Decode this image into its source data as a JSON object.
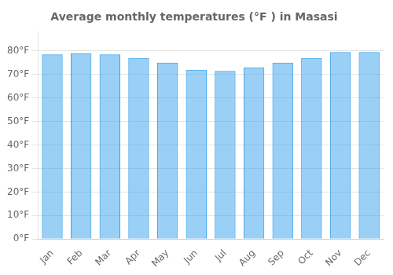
{
  "chart_data": {
    "type": "bar",
    "title": "Average monthly temperatures (°F ) in Masasi",
    "categories": [
      "Jan",
      "Feb",
      "Mar",
      "Apr",
      "May",
      "Jun",
      "Jul",
      "Aug",
      "Sep",
      "Oct",
      "Nov",
      "Dec"
    ],
    "values": [
      78.5,
      79.0,
      78.5,
      77.0,
      75.0,
      72.0,
      71.5,
      73.0,
      75.0,
      77.0,
      79.5,
      79.5
    ],
    "ylim": [
      0,
      88
    ],
    "yticks": [
      {
        "value": 0,
        "label": "0°F"
      },
      {
        "value": 10,
        "label": "10°F"
      },
      {
        "value": 20,
        "label": "20°F"
      },
      {
        "value": 30,
        "label": "30°F"
      },
      {
        "value": 40,
        "label": "40°F"
      },
      {
        "value": 50,
        "label": "50°F"
      },
      {
        "value": 60,
        "label": "60°F"
      },
      {
        "value": 70,
        "label": "70°F"
      },
      {
        "value": 80,
        "label": "80°F"
      }
    ],
    "grid": true
  }
}
